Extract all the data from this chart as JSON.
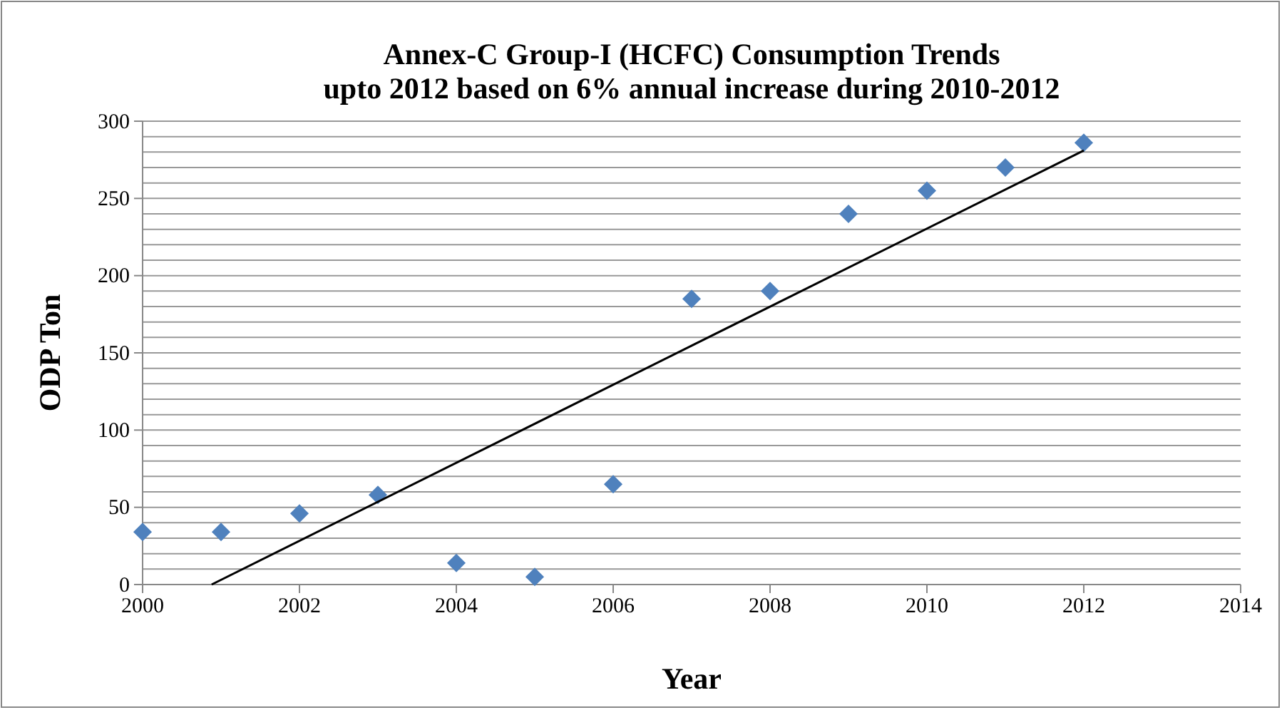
{
  "chart_data": {
    "type": "scatter",
    "title": "Annex-C Group-I (HCFC) Consumption Trends\nupto 2012 based on 6% annual increase during 2010-2012",
    "xlabel": "Year",
    "ylabel": "ODP Ton",
    "xlim": [
      2000,
      2014
    ],
    "xticks": [
      2000,
      2002,
      2004,
      2006,
      2008,
      2010,
      2012,
      2014
    ],
    "ylim": [
      0,
      300
    ],
    "yticks": [
      0,
      {
        "value": 10,
        "label": null
      },
      {
        "value": 20,
        "label": null
      },
      {
        "value": 30,
        "label": null
      },
      {
        "value": 40,
        "label": null
      },
      50,
      {
        "value": 60,
        "label": null
      },
      {
        "value": 70,
        "label": null
      },
      {
        "value": 80,
        "label": null
      },
      {
        "value": 90,
        "label": null
      },
      100,
      {
        "value": 110,
        "label": null
      },
      {
        "value": 120,
        "label": null
      },
      {
        "value": 130,
        "label": null
      },
      {
        "value": 140,
        "label": null
      },
      150,
      {
        "value": 160,
        "label": null
      },
      {
        "value": 170,
        "label": null
      },
      {
        "value": 180,
        "label": null
      },
      {
        "value": 190,
        "label": null
      },
      200,
      {
        "value": 210,
        "label": null
      },
      {
        "value": 220,
        "label": null
      },
      {
        "value": 230,
        "label": null
      },
      {
        "value": 240,
        "label": null
      },
      250,
      {
        "value": 260,
        "label": null
      },
      {
        "value": 270,
        "label": null
      },
      {
        "value": 280,
        "label": null
      },
      {
        "value": 290,
        "label": null
      },
      300
    ],
    "grid": "y",
    "series": [
      {
        "marker": "diamond",
        "color": "#4f81bd",
        "x": [
          2000,
          2001,
          2002,
          2003,
          2004,
          2005,
          2006,
          2007,
          2008,
          2009,
          2010,
          2011,
          2012
        ],
        "values": [
          34,
          34,
          46,
          58,
          14,
          5,
          65,
          185,
          190,
          240,
          255,
          270,
          286
        ]
      },
      {
        "type": "line",
        "color": "#000000",
        "x": [
          2000.88,
          2012
        ],
        "values": [
          0,
          281
        ]
      }
    ]
  }
}
